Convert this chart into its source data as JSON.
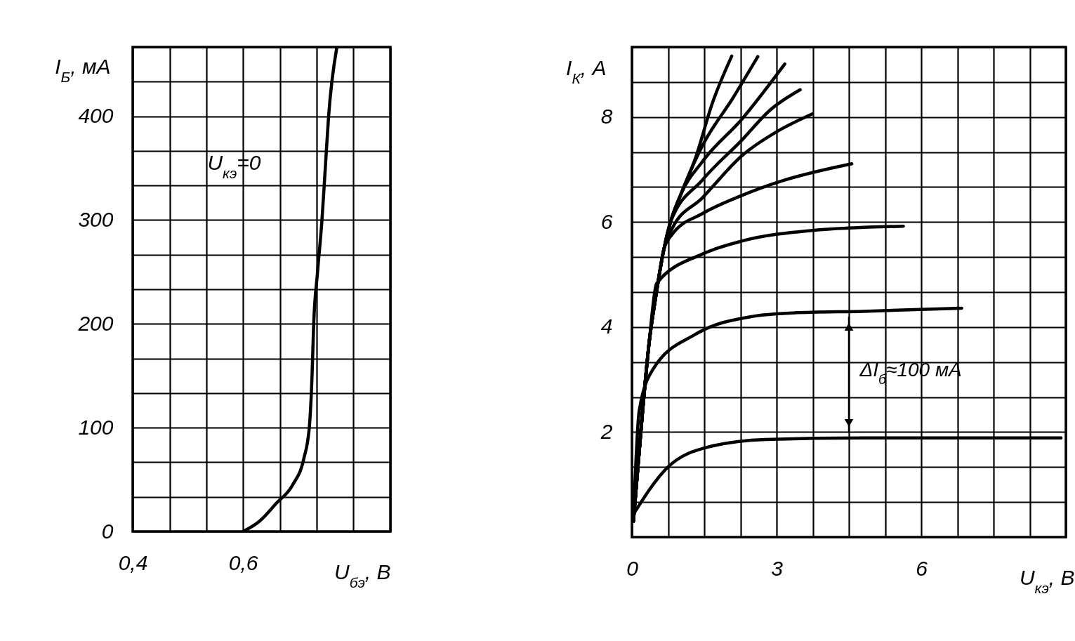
{
  "chart_data": [
    {
      "type": "line",
      "xlabel": "U$_{бэ}$, В",
      "ylabel": "I$_{Б}$, мА",
      "xlim": [
        0.4,
        0.867
      ],
      "ylim": [
        0,
        466.7
      ],
      "xticks": [
        {
          "value": 0.4,
          "label": "0,4"
        },
        {
          "value": 0.467,
          "label": null
        },
        {
          "value": 0.533,
          "label": null
        },
        {
          "value": 0.6,
          "label": "0,6"
        },
        {
          "value": 0.667,
          "label": null
        },
        {
          "value": 0.733,
          "label": null
        },
        {
          "value": 0.8,
          "label": null
        },
        {
          "value": 0.867,
          "label": null
        }
      ],
      "yticks": [
        0,
        {
          "value": 33.3,
          "label": null
        },
        {
          "value": 66.7,
          "label": null
        },
        100,
        {
          "value": 133.3,
          "label": null
        },
        {
          "value": 166.7,
          "label": null
        },
        200,
        {
          "value": 233.3,
          "label": null
        },
        {
          "value": 266.7,
          "label": null
        },
        300,
        {
          "value": 333.3,
          "label": null
        },
        {
          "value": 366.7,
          "label": null
        },
        400,
        {
          "value": 433.3,
          "label": null
        },
        {
          "value": 466.7,
          "label": null
        }
      ],
      "grid": true,
      "annotations": [
        "U$_{кэ}$=0"
      ],
      "series": [
        {
          "color": "#000000",
          "x": [
            0.6,
            0.63,
            0.66,
            0.69,
            0.71,
            0.72,
            0.725,
            0.728,
            0.735,
            0.743,
            0.749,
            0.755,
            0.77
          ],
          "values": [
            0,
            10,
            27,
            45,
            70,
            100,
            150,
            200,
            250,
            300,
            350,
            400,
            466.7
          ]
        }
      ]
    },
    {
      "type": "line",
      "xlabel": "U$_{кэ}$, В",
      "ylabel": "I$_{К}$, А",
      "xlim": [
        0,
        9
      ],
      "ylim": [
        0,
        9.333
      ],
      "xticks": [
        0,
        {
          "value": 0.75,
          "label": null
        },
        {
          "value": 1.5,
          "label": null
        },
        {
          "value": 2.25,
          "label": null
        },
        3,
        {
          "value": 3.75,
          "label": null
        },
        {
          "value": 4.5,
          "label": null
        },
        {
          "value": 5.25,
          "label": null
        },
        6,
        {
          "value": 6.75,
          "label": null
        },
        {
          "value": 7.5,
          "label": null
        },
        {
          "value": 8.25,
          "label": null
        },
        {
          "value": 9,
          "label": null
        }
      ],
      "yticks": [
        {
          "value": 0.667,
          "label": null
        },
        {
          "value": 1.333,
          "label": null
        },
        2,
        {
          "value": 2.667,
          "label": null
        },
        {
          "value": 3.333,
          "label": null
        },
        4,
        {
          "value": 4.667,
          "label": null
        },
        {
          "value": 5.333,
          "label": null
        },
        6,
        {
          "value": 6.667,
          "label": null
        },
        {
          "value": 7.333,
          "label": null
        },
        8,
        {
          "value": 8.667,
          "label": null
        },
        {
          "value": 9.333,
          "label": null
        }
      ],
      "grid": true,
      "annotations": [
        "ΔI$_{б}$≈100 мА"
      ],
      "series": [
        {
          "color": "#000000",
          "x": [
            0.0,
            0.73,
            1.6,
            2.77,
            4.8,
            8.9
          ],
          "values": [
            0.39,
            1.32,
            1.72,
            1.86,
            1.89,
            1.89
          ]
        },
        {
          "color": "#000000",
          "x": [
            0.03,
            0.15,
            0.44,
            1.31,
            2.48,
            3.35,
            4.8,
            6.84
          ],
          "values": [
            0.3,
            2.4,
            3.2,
            3.86,
            4.2,
            4.27,
            4.3,
            4.36
          ]
        },
        {
          "color": "#000000",
          "x": [
            0.03,
            0.22,
            0.36,
            0.51,
            1.46,
            2.29,
            3.74,
            5.63
          ],
          "values": [
            0.3,
            2.39,
            3.73,
            4.83,
            5.39,
            5.64,
            5.84,
            5.92
          ]
        },
        {
          "color": "#000000",
          "x": [
            0.03,
            0.22,
            0.36,
            0.51,
            0.66,
            0.83,
            1.46,
            2.29,
            3.1,
            4.56
          ],
          "values": [
            0.3,
            2.39,
            3.73,
            4.67,
            5.47,
            5.76,
            6.16,
            6.51,
            6.78,
            7.11
          ]
        },
        {
          "color": "#000000",
          "x": [
            0.03,
            0.22,
            0.36,
            0.51,
            0.66,
            0.83,
            1.46,
            2.29,
            3.04,
            3.74
          ],
          "values": [
            0.3,
            2.39,
            3.73,
            4.67,
            5.47,
            5.87,
            6.46,
            7.27,
            7.74,
            8.06
          ]
        },
        {
          "color": "#000000",
          "x": [
            0.03,
            0.22,
            0.36,
            0.51,
            0.66,
            0.8,
            1.46,
            2.29,
            2.85,
            3.49
          ],
          "values": [
            0.3,
            2.39,
            3.73,
            4.67,
            5.47,
            6.0,
            6.8,
            7.57,
            8.12,
            8.52
          ]
        },
        {
          "color": "#000000",
          "x": [
            0.03,
            0.22,
            0.36,
            0.51,
            0.66,
            0.8,
            1.02,
            1.46,
            2.29,
            3.17
          ],
          "values": [
            0.3,
            2.39,
            3.73,
            4.67,
            5.47,
            6.0,
            6.54,
            7.15,
            7.97,
            9.01
          ]
        },
        {
          "color": "#000000",
          "x": [
            0.03,
            0.22,
            0.36,
            0.51,
            0.66,
            0.8,
            1.02,
            1.46,
            2.1,
            2.61
          ],
          "values": [
            0.3,
            2.39,
            3.73,
            4.67,
            5.47,
            6.0,
            6.54,
            7.45,
            8.37,
            9.15
          ]
        },
        {
          "color": "#000000",
          "x": [
            0.03,
            0.22,
            0.36,
            0.51,
            0.66,
            0.8,
            1.02,
            1.31,
            1.67,
            2.07
          ],
          "values": [
            0.3,
            2.39,
            3.73,
            4.67,
            5.47,
            6.0,
            6.54,
            7.2,
            8.27,
            9.16
          ]
        }
      ]
    }
  ]
}
